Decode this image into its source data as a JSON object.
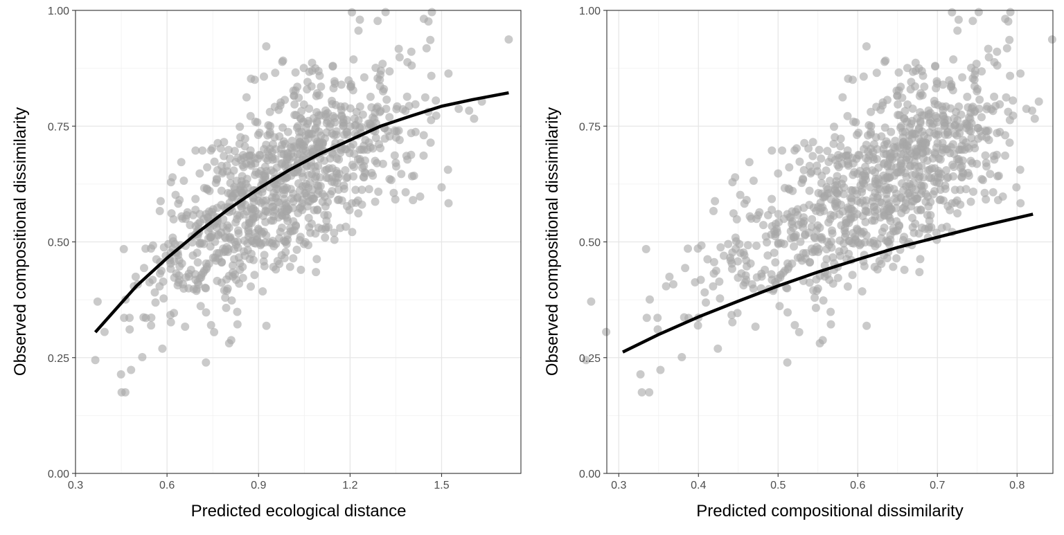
{
  "chart_data": [
    {
      "type": "scatter",
      "xlabel": "Predicted ecological distance",
      "ylabel": "Observed compositional dissimilarity",
      "xlim": [
        0.3,
        1.76
      ],
      "ylim": [
        0,
        1
      ],
      "xticks": [
        "0.3",
        "0.6",
        "0.9",
        "1.2",
        "1.5"
      ],
      "yticks": [
        "0.00",
        "0.25",
        "0.50",
        "0.75",
        "1.00"
      ],
      "grid": true,
      "point_color": "#a6a6a6",
      "fit_color": "#000000",
      "series": [
        {
          "kind": "points",
          "n_points": 1000,
          "x_range": [
            0.365,
            1.72
          ],
          "y_range": [
            0.175,
            1.0
          ],
          "x_mean": 0.98,
          "relationship": "y = 1 - exp(-(-0.12 + 1.15 * x)) plus noise"
        },
        {
          "kind": "fit",
          "x": [
            0.365,
            0.5,
            0.6,
            0.7,
            0.8,
            0.9,
            1.0,
            1.1,
            1.2,
            1.3,
            1.4,
            1.5,
            1.6,
            1.72
          ],
          "y": [
            0.305,
            0.405,
            0.465,
            0.52,
            0.57,
            0.615,
            0.655,
            0.69,
            0.72,
            0.75,
            0.772,
            0.793,
            0.807,
            0.822
          ]
        }
      ]
    },
    {
      "type": "scatter",
      "xlabel": "Predicted compositional dissimilarity",
      "ylabel": "Observed compositional dissimilarity",
      "xlim": [
        0.285,
        0.845
      ],
      "ylim": [
        0,
        1
      ],
      "xticks": [
        "0.3",
        "0.4",
        "0.5",
        "0.6",
        "0.7",
        "0.8"
      ],
      "yticks": [
        "0.00",
        "0.25",
        "0.50",
        "0.75",
        "1.00"
      ],
      "grid": true,
      "point_color": "#a6a6a6",
      "fit_color": "#000000",
      "series": [
        {
          "kind": "points",
          "n_points": 1000,
          "x_range": [
            0.305,
            0.82
          ],
          "y_range": [
            0.175,
            1.0
          ],
          "relationship": "x = 1 - exp(-(-0.12 + 1.15 * ecological distance)), same observations as left panel"
        },
        {
          "kind": "fit",
          "x": [
            0.305,
            0.35,
            0.4,
            0.45,
            0.5,
            0.55,
            0.6,
            0.65,
            0.7,
            0.75,
            0.82
          ],
          "y": [
            0.262,
            0.3,
            0.338,
            0.372,
            0.405,
            0.435,
            0.462,
            0.488,
            0.51,
            0.532,
            0.56
          ]
        }
      ]
    }
  ]
}
